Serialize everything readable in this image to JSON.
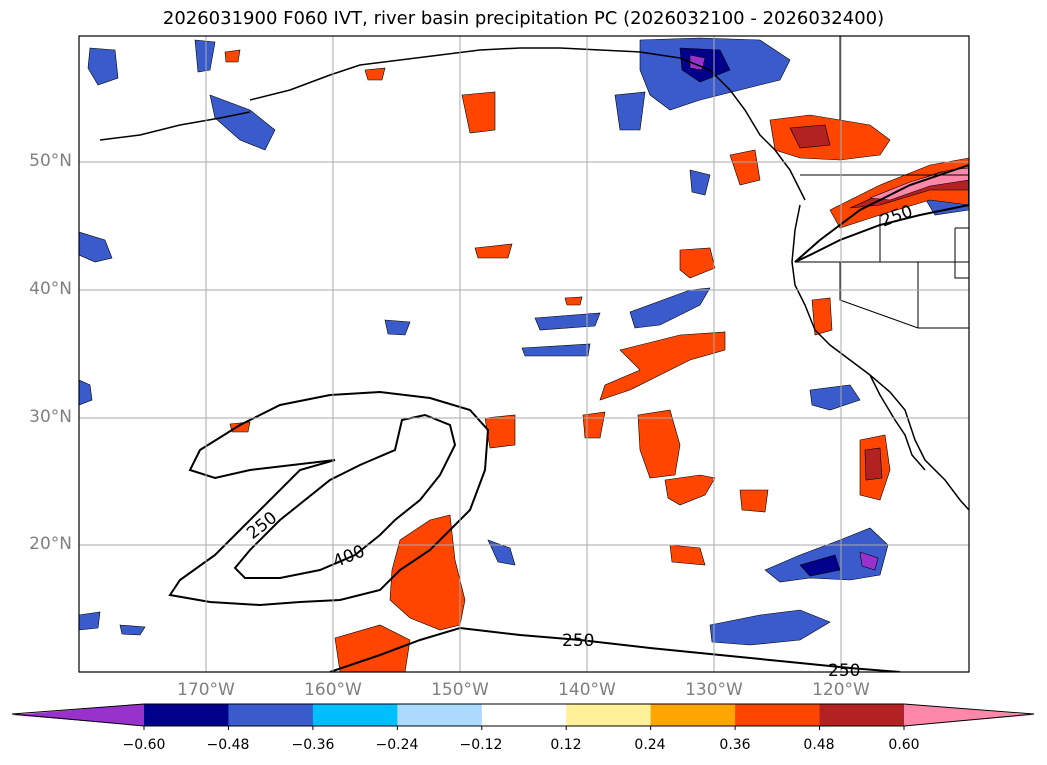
{
  "title": "2026031900 F060 IVT, river basin precipitation PC (2026032100 - 2026032400)",
  "lon_labels": [
    "170°W",
    "160°W",
    "150°W",
    "140°W",
    "130°W",
    "120°W"
  ],
  "lat_labels": [
    "50°N",
    "40°N",
    "30°N",
    "20°N"
  ],
  "contour_labels": [
    "250",
    "400",
    "250",
    "250",
    "250"
  ],
  "colorbar": {
    "ticks": [
      "−0.60",
      "−0.48",
      "−0.36",
      "−0.24",
      "−0.12",
      "0.12",
      "0.24",
      "0.36",
      "0.48",
      "0.60"
    ],
    "colors": [
      "#9932cc",
      "#00008b",
      "#3a5bcc",
      "#00bfff",
      "#add8ff",
      "#ffffff",
      "#fff09a",
      "#ffa500",
      "#ff4500",
      "#b22222",
      "#ff88aa"
    ]
  }
}
